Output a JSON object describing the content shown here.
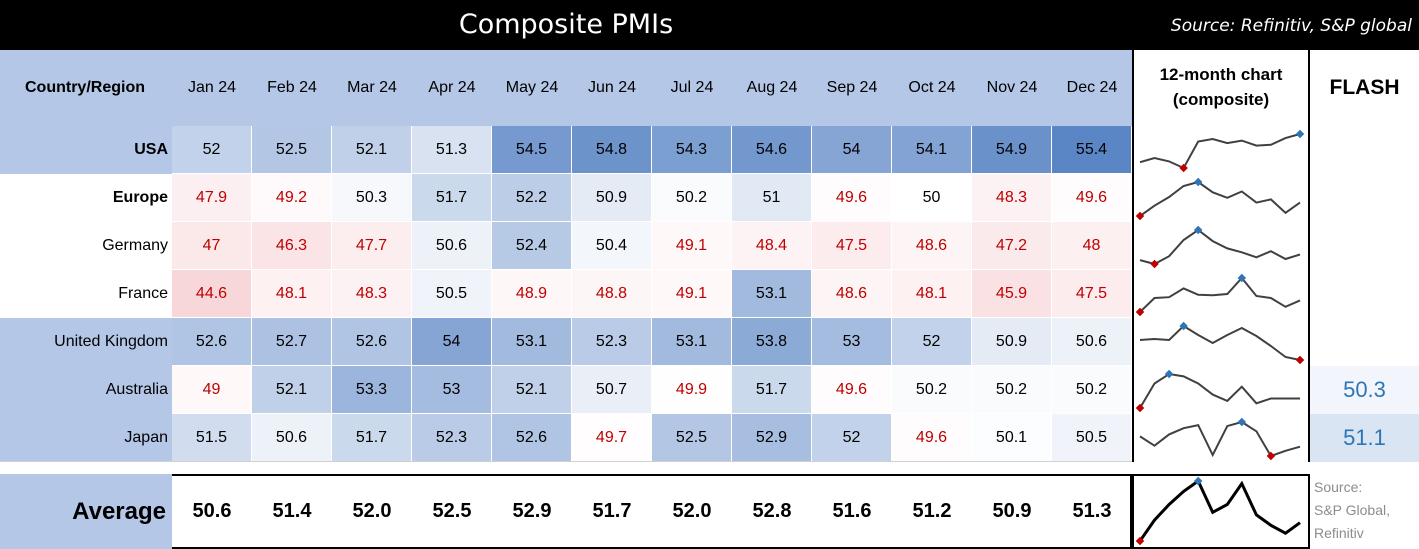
{
  "title": "Composite PMIs",
  "source_top": "Source: Refinitiv, S&P global",
  "header": {
    "country": "Country/Region",
    "chart": [
      "12-month chart",
      "(composite)"
    ],
    "flash": "FLASH"
  },
  "average_label": "Average",
  "bottom_source": [
    "Source:",
    "S&P Global,",
    "Refinitiv"
  ],
  "colors": {
    "header_bg": "#b4c7e7",
    "heat_high": "#5b86c5",
    "heat_mid": "#ffffff",
    "heat_low": "#f8d7da",
    "below_50_text": "#c00000",
    "flash_text": "#2e75b6",
    "spark_line": "#404040",
    "spark_max": "#2e75b6",
    "spark_min": "#c00000"
  },
  "chart_data": {
    "type": "table",
    "categories": [
      "Jan 24",
      "Feb 24",
      "Mar 24",
      "Apr 24",
      "May 24",
      "Jun 24",
      "Jul 24",
      "Aug 24",
      "Sep 24",
      "Oct 24",
      "Nov 24",
      "Dec 24"
    ],
    "series": [
      {
        "name": "USA",
        "bold": true,
        "values": [
          "52",
          "52.5",
          "52.1",
          "51.3",
          "54.5",
          "54.8",
          "54.3",
          "54.6",
          "54",
          "54.1",
          "54.9",
          "55.4"
        ],
        "flash": ""
      },
      {
        "name": "Europe",
        "bold": true,
        "values": [
          "47.9",
          "49.2",
          "50.3",
          "51.7",
          "52.2",
          "50.9",
          "50.2",
          "51",
          "49.6",
          "50",
          "48.3",
          "49.6"
        ],
        "flash": ""
      },
      {
        "name": "Germany",
        "bold": false,
        "values": [
          "47",
          "46.3",
          "47.7",
          "50.6",
          "52.4",
          "50.4",
          "49.1",
          "48.4",
          "47.5",
          "48.6",
          "47.2",
          "48"
        ],
        "flash": ""
      },
      {
        "name": "France",
        "bold": false,
        "values": [
          "44.6",
          "48.1",
          "48.3",
          "50.5",
          "48.9",
          "48.8",
          "49.1",
          "53.1",
          "48.6",
          "48.1",
          "45.9",
          "47.5"
        ],
        "flash": ""
      },
      {
        "name": "United Kingdom",
        "bold": false,
        "values": [
          "52.6",
          "52.7",
          "52.6",
          "54",
          "53.1",
          "52.3",
          "53.1",
          "53.8",
          "53",
          "52",
          "50.9",
          "50.6"
        ],
        "flash": ""
      },
      {
        "name": "Australia",
        "bold": false,
        "values": [
          "49",
          "52.1",
          "53.3",
          "53",
          "52.1",
          "50.7",
          "49.9",
          "51.7",
          "49.6",
          "50.2",
          "50.2",
          "50.2"
        ],
        "flash": "50.3"
      },
      {
        "name": "Japan",
        "bold": false,
        "values": [
          "51.5",
          "50.6",
          "51.7",
          "52.3",
          "52.6",
          "49.7",
          "52.5",
          "52.9",
          "52",
          "49.6",
          "50.1",
          "50.5"
        ],
        "flash": "51.1"
      }
    ],
    "average": [
      "50.6",
      "51.4",
      "52.0",
      "52.5",
      "52.9",
      "51.7",
      "52.0",
      "52.8",
      "51.6",
      "51.2",
      "50.9",
      "51.3"
    ]
  }
}
